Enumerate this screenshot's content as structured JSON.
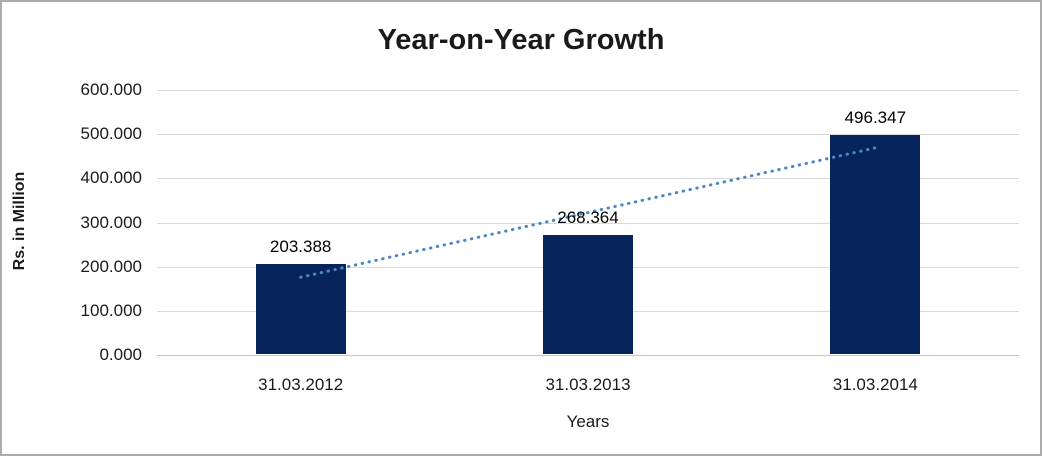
{
  "frame": {
    "border_color": "#ACACAC",
    "background_color": "#FFFFFF"
  },
  "chart_data": {
    "type": "bar",
    "title": "Year-on-Year Growth",
    "xlabel": "Years",
    "ylabel": "Rs. in Million",
    "categories": [
      "31.03.2012",
      "31.03.2013",
      "31.03.2014"
    ],
    "values": [
      203.388,
      268.364,
      496.347
    ],
    "data_labels": [
      "203.388",
      "268.364",
      "496.347"
    ],
    "ylim": [
      0,
      600
    ],
    "yticks": [
      0,
      100,
      200,
      300,
      400,
      500,
      600
    ],
    "ytick_labels": [
      "0.000",
      "100.000",
      "200.000",
      "300.000",
      "400.000",
      "500.000",
      "600.000"
    ],
    "grid": true,
    "legend": "none",
    "bar_color": "#08245C",
    "gridline_color": "#D9D9D9",
    "axis_line_color": "#C6C6C6",
    "trendline": {
      "style": "dotted",
      "color": "#4A86C8",
      "from_category": "31.03.2012",
      "to_category": "31.03.2014",
      "from_value": 176,
      "to_value": 469
    }
  }
}
